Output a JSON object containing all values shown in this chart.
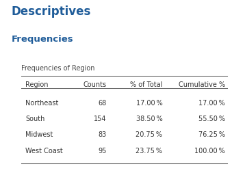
{
  "title": "Descriptives",
  "subtitle": "Frequencies",
  "table_title": "Frequencies of Region",
  "headers": [
    "Region",
    "Counts",
    "% of Total",
    "Cumulative %"
  ],
  "rows": [
    [
      "Northeast",
      "68",
      "17.00 %",
      "17.00 %"
    ],
    [
      "South",
      "154",
      "38.50 %",
      "55.50 %"
    ],
    [
      "Midwest",
      "83",
      "20.75 %",
      "76.25 %"
    ],
    [
      "West Coast",
      "95",
      "23.75 %",
      "100.00 %"
    ]
  ],
  "title_color": "#1F5C99",
  "subtitle_color": "#1F5C99",
  "table_title_color": "#444444",
  "header_color": "#333333",
  "row_color": "#333333",
  "bg_color": "#FFFFFF",
  "line_color": "#666666",
  "col_aligns": [
    "left",
    "right",
    "right",
    "right"
  ],
  "title_fontsize": 12,
  "subtitle_fontsize": 9.5,
  "table_title_fontsize": 7,
  "header_fontsize": 7,
  "row_fontsize": 7
}
